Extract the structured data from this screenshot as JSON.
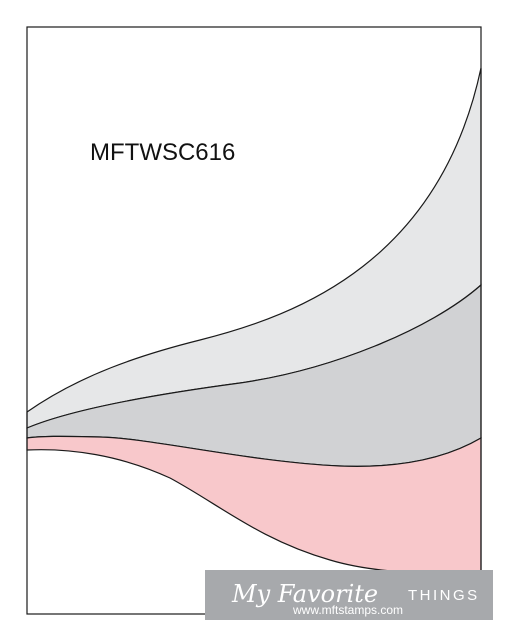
{
  "title": "MFTWSC616",
  "logo": {
    "script": "My Favorite",
    "caps": "THINGS",
    "url": "www.mftstamps.com"
  }
}
